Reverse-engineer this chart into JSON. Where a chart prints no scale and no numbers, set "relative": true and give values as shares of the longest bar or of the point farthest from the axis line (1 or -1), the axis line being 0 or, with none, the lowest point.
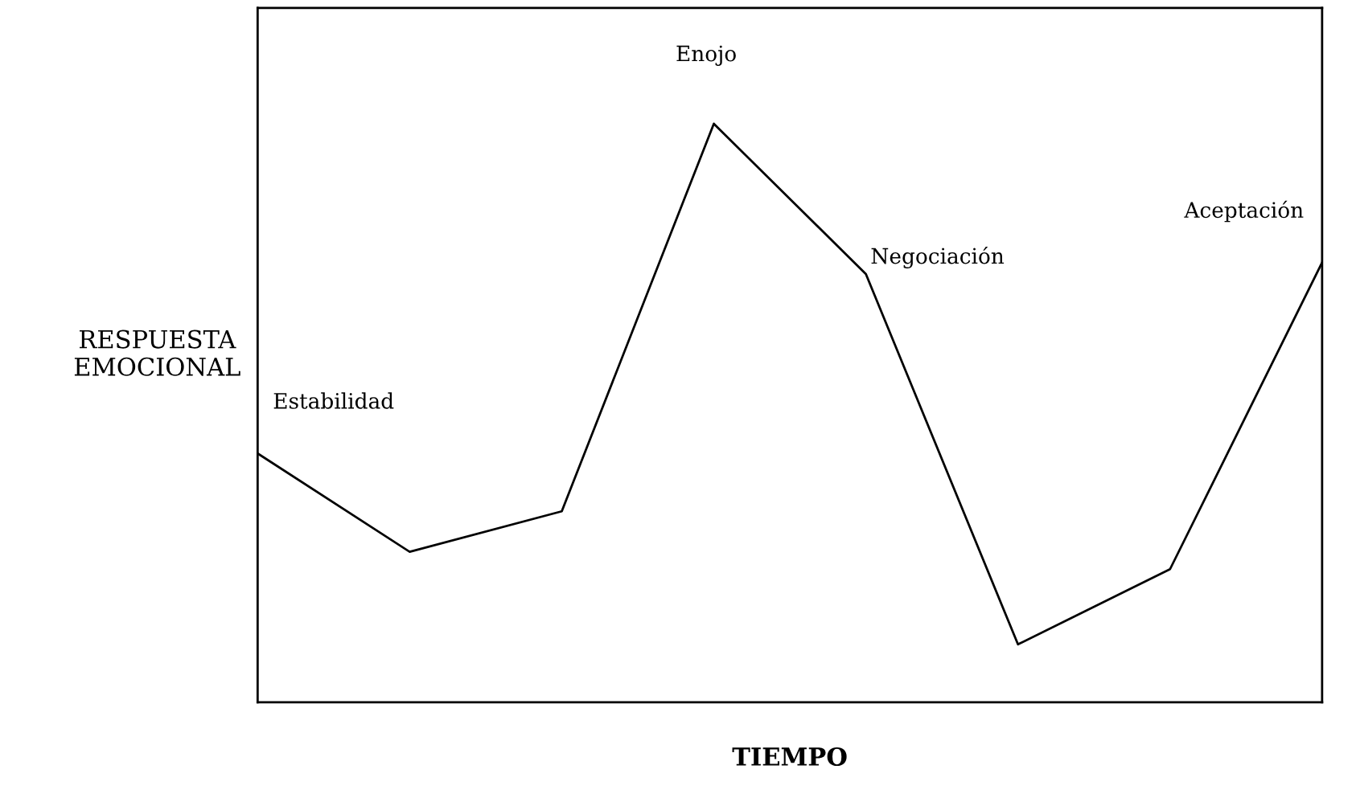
{
  "chart_data": {
    "type": "line",
    "relative": true,
    "xlabel": "TIEMPO",
    "ylabel": "RESPUESTA\nEMOCIONAL",
    "categories": [
      null,
      null,
      null,
      null,
      null,
      null,
      null,
      null
    ],
    "series": [
      {
        "color": "#000000",
        "values": [
          0.43,
          0.26,
          0.33,
          1,
          0.74,
          0.1,
          0.23,
          0.76
        ]
      }
    ],
    "annotations": [
      "Estabilidad",
      "Enojo",
      "Negociación",
      "Aceptación"
    ],
    "grid": false,
    "legend": false,
    "marker": "none",
    "line_style": "solid",
    "tick_labels": false
  }
}
